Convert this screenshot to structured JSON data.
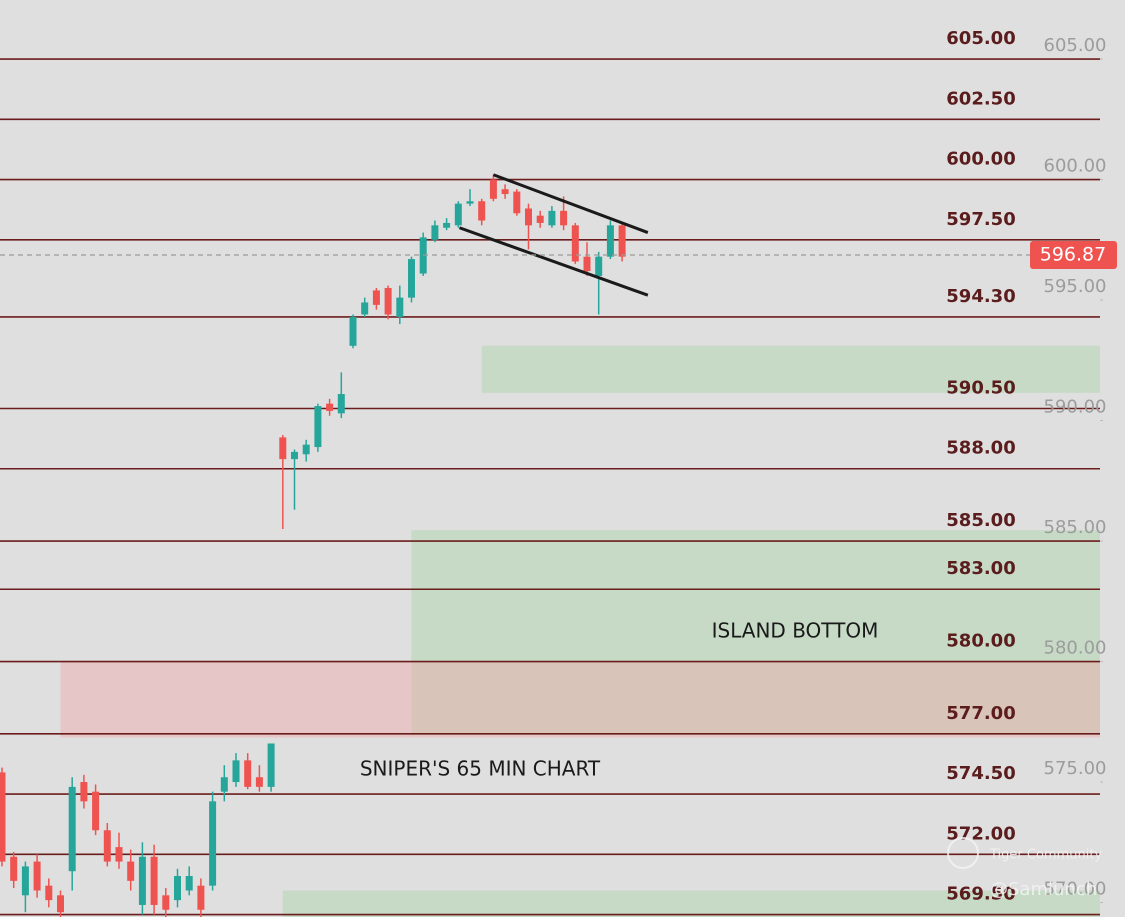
{
  "chart_data": {
    "type": "candlestick",
    "ylim": [
      569.4,
      607.45
    ],
    "yticks": [
      {
        "value": 605,
        "label": "605.00"
      },
      {
        "value": 600,
        "label": "600.00"
      },
      {
        "value": 595,
        "label": "595.00"
      },
      {
        "value": 590,
        "label": "590.00"
      },
      {
        "value": 585,
        "label": "585.00"
      },
      {
        "value": 580,
        "label": "580.00"
      },
      {
        "value": 575,
        "label": "575.00"
      },
      {
        "value": 570,
        "label": "570.00"
      }
    ],
    "up_color": "#26a69a",
    "down_color": "#ef5350",
    "candles": [
      [
        575.4,
        575.6,
        571.5,
        571.7
      ],
      [
        571.9,
        572.1,
        570.6,
        570.9
      ],
      [
        570.3,
        571.7,
        569.6,
        571.5
      ],
      [
        571.7,
        572.0,
        570.2,
        570.5
      ],
      [
        570.7,
        571.0,
        569.8,
        570.1
      ],
      [
        570.3,
        570.5,
        569.4,
        569.6
      ],
      [
        571.3,
        575.2,
        570.5,
        574.8
      ],
      [
        575.0,
        575.3,
        573.9,
        574.2
      ],
      [
        574.6,
        574.9,
        572.8,
        573.0
      ],
      [
        573.0,
        573.3,
        571.5,
        571.7
      ],
      [
        572.3,
        572.9,
        571.4,
        571.7
      ],
      [
        571.7,
        572.2,
        570.5,
        570.9
      ],
      [
        569.9,
        572.5,
        569.5,
        571.9
      ],
      [
        571.9,
        572.4,
        569.5,
        569.9
      ],
      [
        570.3,
        570.6,
        569.4,
        569.7
      ],
      [
        570.1,
        571.4,
        569.8,
        571.1
      ],
      [
        570.5,
        571.5,
        570.3,
        571.1
      ],
      [
        570.7,
        571.0,
        569.4,
        569.7
      ],
      [
        570.7,
        574.6,
        570.5,
        574.2
      ],
      [
        574.6,
        575.7,
        574.2,
        575.2
      ],
      [
        575.0,
        576.2,
        574.8,
        575.9
      ],
      [
        575.9,
        576.2,
        574.7,
        574.8
      ],
      [
        575.2,
        575.7,
        574.6,
        574.8
      ],
      [
        574.8,
        576.6,
        574.6,
        576.6
      ],
      [
        589.3,
        589.4,
        585.5,
        588.4
      ],
      [
        588.4,
        588.8,
        586.3,
        588.7
      ],
      [
        588.6,
        589.2,
        588.3,
        589.0
      ],
      [
        588.9,
        590.7,
        588.7,
        590.6
      ],
      [
        590.7,
        590.9,
        590.2,
        590.4
      ],
      [
        590.3,
        592.0,
        590.1,
        591.1
      ],
      [
        593.1,
        594.4,
        593.0,
        594.3
      ],
      [
        594.4,
        595.1,
        594.3,
        594.9
      ],
      [
        595.4,
        595.5,
        594.6,
        594.8
      ],
      [
        595.5,
        595.6,
        594.2,
        594.4
      ],
      [
        594.3,
        595.6,
        594.0,
        595.1
      ],
      [
        595.1,
        596.8,
        594.9,
        596.7
      ],
      [
        596.1,
        597.8,
        596.0,
        597.6
      ],
      [
        597.5,
        598.3,
        597.4,
        598.1
      ],
      [
        598.0,
        598.4,
        597.9,
        598.2
      ],
      [
        598.1,
        599.1,
        598.0,
        599.0
      ],
      [
        599.0,
        599.6,
        598.9,
        599.1
      ],
      [
        599.1,
        599.2,
        598.1,
        598.3
      ],
      [
        600.0,
        600.2,
        599.1,
        599.2
      ],
      [
        599.6,
        599.8,
        599.2,
        599.4
      ],
      [
        599.5,
        599.6,
        598.5,
        598.6
      ],
      [
        598.8,
        599.0,
        597.1,
        598.1
      ],
      [
        598.5,
        598.7,
        598.0,
        598.2
      ],
      [
        598.1,
        598.9,
        598.0,
        598.7
      ],
      [
        598.7,
        599.3,
        597.9,
        598.1
      ],
      [
        598.1,
        598.2,
        596.5,
        596.6
      ],
      [
        596.8,
        597.4,
        596.0,
        596.2
      ],
      [
        596.0,
        597.0,
        594.4,
        596.8
      ],
      [
        596.8,
        598.3,
        596.7,
        598.1
      ],
      [
        598.1,
        598.2,
        596.6,
        596.8
      ]
    ],
    "levels": [
      {
        "value": 605,
        "label": "605.00"
      },
      {
        "value": 602.5,
        "label": "602.50"
      },
      {
        "value": 600,
        "label": "600.00"
      },
      {
        "value": 597.5,
        "label": "597.50"
      },
      {
        "value": 594.3,
        "label": "594.30"
      },
      {
        "value": 590.5,
        "label": "590.50"
      },
      {
        "value": 588,
        "label": "588.00"
      },
      {
        "value": 585,
        "label": "585.00"
      },
      {
        "value": 583,
        "label": "583.00"
      },
      {
        "value": 580,
        "label": "580.00"
      },
      {
        "value": 577,
        "label": "577.00"
      },
      {
        "value": 574.5,
        "label": "574.50"
      },
      {
        "value": 572,
        "label": "572.00"
      },
      {
        "value": 569.5,
        "label": "569.50"
      }
    ],
    "level_color": "#6b1d1d",
    "zones": [
      {
        "from": 41,
        "top": 593.1,
        "bottom": 591.15,
        "color": "#a9d4a9"
      },
      {
        "from": 35,
        "top": 585.45,
        "bottom": 576.95,
        "color": "#a9d4a9"
      },
      {
        "from": 5,
        "top": 580.0,
        "bottom": 576.85,
        "color": "#f0a8a8"
      },
      {
        "from": 24,
        "top": 570.5,
        "bottom": 569.4,
        "color": "#a9d4a9"
      }
    ],
    "channel": [
      {
        "start": [
          42,
          600.2
        ],
        "end": [
          55.2,
          597.8
        ]
      },
      {
        "start": [
          39.1,
          598.0
        ],
        "end": [
          55.2,
          595.2
        ]
      }
    ],
    "last_price": {
      "value": 596.87,
      "label": "596.87"
    },
    "annotations": [
      "ISLAND BOTTOM",
      "SNIPER'S 65 MIN CHART"
    ],
    "watermark": [
      "Tiger Community",
      "@Samlunch"
    ]
  }
}
